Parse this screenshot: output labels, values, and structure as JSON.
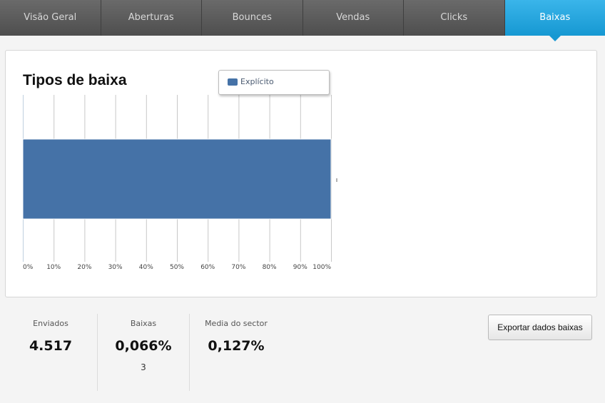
{
  "tabs": [
    {
      "label": "Visão Geral",
      "active": false
    },
    {
      "label": "Aberturas",
      "active": false
    },
    {
      "label": "Bounces",
      "active": false
    },
    {
      "label": "Vendas",
      "active": false
    },
    {
      "label": "Clicks",
      "active": false
    },
    {
      "label": "Baixas",
      "active": true
    }
  ],
  "chart_data": {
    "type": "bar",
    "orientation": "horizontal",
    "stacked_percent": true,
    "title": "Tipos de baixa",
    "categories": [
      ""
    ],
    "series": [
      {
        "name": "Explícito",
        "values": [
          100
        ],
        "color": "#4572a7"
      }
    ],
    "x_ticks": [
      "0%",
      "10%",
      "20%",
      "30%",
      "40%",
      "50%",
      "60%",
      "70%",
      "80%",
      "90%",
      "100%"
    ],
    "xlim": [
      0,
      100
    ],
    "grid": true,
    "legend_position": "top"
  },
  "stats": {
    "sent_label": "Enviados",
    "sent_value": "4.517",
    "unsub_label": "Baixas",
    "unsub_value": "0,066%",
    "unsub_count": "3",
    "sector_label": "Media do sector",
    "sector_value": "0,127%"
  },
  "export_button": "Exportar dados baixas",
  "colors": {
    "tab_bg": "#5a5a5a",
    "tab_active": "#1ba1dc",
    "bar": "#4572a7"
  }
}
